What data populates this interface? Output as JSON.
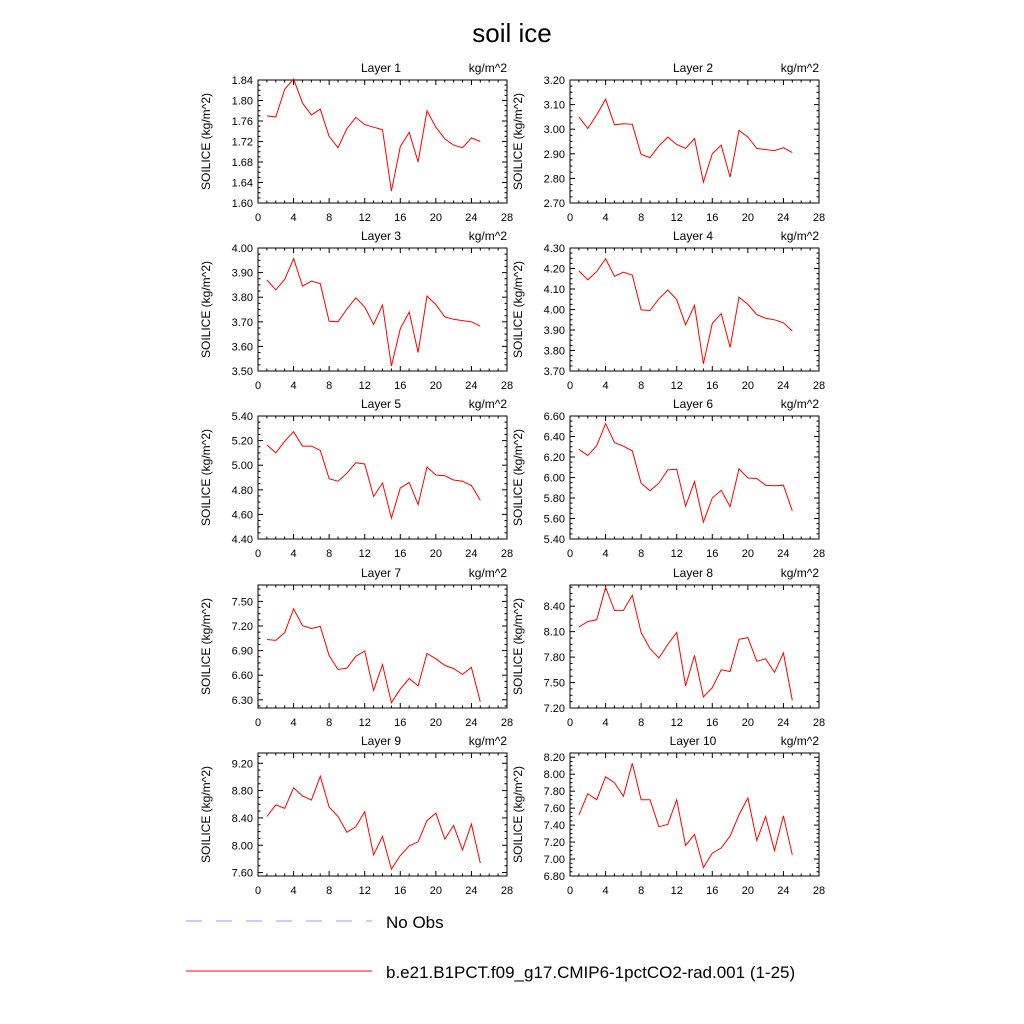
{
  "figure": {
    "title": "soil ice"
  },
  "chart_data": [
    {
      "type": "line",
      "title": "Layer 1",
      "units": "kg/m^2",
      "ylabel": "SOILICE  (kg/m^2)",
      "xlim": [
        0,
        28
      ],
      "ylim": [
        1.6,
        1.84
      ],
      "xticks": [
        "0",
        "4",
        "8",
        "12",
        "16",
        "20",
        "24",
        "28"
      ],
      "yticks": [
        "1.60",
        "1.64",
        "1.68",
        "1.72",
        "1.76",
        "1.80",
        "1.84"
      ],
      "x": [
        1,
        2,
        3,
        4,
        5,
        6,
        7,
        8,
        9,
        10,
        11,
        12,
        13,
        14,
        15,
        16,
        17,
        18,
        19,
        20,
        21,
        22,
        23,
        24,
        25
      ],
      "series": [
        {
          "color": "#ff0000",
          "values": [
            1.77,
            1.768,
            1.822,
            1.842,
            1.795,
            1.772,
            1.783,
            1.73,
            1.708,
            1.745,
            1.767,
            1.753,
            1.748,
            1.743,
            1.623,
            1.71,
            1.738,
            1.68,
            1.78,
            1.748,
            1.725,
            1.713,
            1.708,
            1.727,
            1.72
          ]
        }
      ]
    },
    {
      "type": "line",
      "title": "Layer 2",
      "units": "kg/m^2",
      "ylabel": "SOILICE  (kg/m^2)",
      "xlim": [
        0,
        28
      ],
      "ylim": [
        2.7,
        3.2
      ],
      "xticks": [
        "0",
        "4",
        "8",
        "12",
        "16",
        "20",
        "24",
        "28"
      ],
      "yticks": [
        "2.70",
        "2.80",
        "2.90",
        "3.00",
        "3.10",
        "3.20"
      ],
      "x": [
        1,
        2,
        3,
        4,
        5,
        6,
        7,
        8,
        9,
        10,
        11,
        12,
        13,
        14,
        15,
        16,
        17,
        18,
        19,
        20,
        21,
        22,
        23,
        24,
        25
      ],
      "series": [
        {
          "color": "#ff0000",
          "values": [
            3.05,
            3.003,
            3.058,
            3.122,
            3.018,
            3.022,
            3.02,
            2.897,
            2.885,
            2.932,
            2.968,
            2.938,
            2.922,
            2.962,
            2.785,
            2.9,
            2.935,
            2.805,
            2.995,
            2.968,
            2.922,
            2.917,
            2.913,
            2.925,
            2.905
          ]
        }
      ]
    },
    {
      "type": "line",
      "title": "Layer 3",
      "units": "kg/m^2",
      "ylabel": "SOILICE  (kg/m^2)",
      "xlim": [
        0,
        28
      ],
      "ylim": [
        3.5,
        4.0
      ],
      "xticks": [
        "0",
        "4",
        "8",
        "12",
        "16",
        "20",
        "24",
        "28"
      ],
      "yticks": [
        "3.50",
        "3.60",
        "3.70",
        "3.80",
        "3.90",
        "4.00"
      ],
      "x": [
        1,
        2,
        3,
        4,
        5,
        6,
        7,
        8,
        9,
        10,
        11,
        12,
        13,
        14,
        15,
        16,
        17,
        18,
        19,
        20,
        21,
        22,
        23,
        24,
        25
      ],
      "series": [
        {
          "color": "#ff0000",
          "values": [
            3.87,
            3.83,
            3.872,
            3.957,
            3.845,
            3.865,
            3.855,
            3.702,
            3.7,
            3.752,
            3.797,
            3.76,
            3.69,
            3.768,
            3.52,
            3.672,
            3.74,
            3.575,
            3.805,
            3.77,
            3.72,
            3.71,
            3.705,
            3.7,
            3.682
          ]
        }
      ]
    },
    {
      "type": "line",
      "title": "Layer 4",
      "units": "kg/m^2",
      "ylabel": "SOILICE  (kg/m^2)",
      "xlim": [
        0,
        28
      ],
      "ylim": [
        3.7,
        4.3
      ],
      "xticks": [
        "0",
        "4",
        "8",
        "12",
        "16",
        "20",
        "24",
        "28"
      ],
      "yticks": [
        "3.70",
        "3.80",
        "3.90",
        "4.00",
        "4.10",
        "4.20",
        "4.30"
      ],
      "x": [
        1,
        2,
        3,
        4,
        5,
        6,
        7,
        8,
        9,
        10,
        11,
        12,
        13,
        14,
        15,
        16,
        17,
        18,
        19,
        20,
        21,
        22,
        23,
        24,
        25
      ],
      "series": [
        {
          "color": "#ff0000",
          "values": [
            4.188,
            4.145,
            4.185,
            4.248,
            4.162,
            4.182,
            4.168,
            3.998,
            3.995,
            4.052,
            4.095,
            4.048,
            3.925,
            4.02,
            3.735,
            3.932,
            3.98,
            3.815,
            4.06,
            4.025,
            3.975,
            3.957,
            3.95,
            3.935,
            3.895
          ]
        }
      ]
    },
    {
      "type": "line",
      "title": "Layer 5",
      "units": "kg/m^2",
      "ylabel": "SOILICE  (kg/m^2)",
      "xlim": [
        0,
        28
      ],
      "ylim": [
        4.4,
        5.4
      ],
      "xticks": [
        "0",
        "4",
        "8",
        "12",
        "16",
        "20",
        "24",
        "28"
      ],
      "yticks": [
        "4.40",
        "4.60",
        "4.80",
        "5.00",
        "5.20",
        "5.40"
      ],
      "x": [
        1,
        2,
        3,
        4,
        5,
        6,
        7,
        8,
        9,
        10,
        11,
        12,
        13,
        14,
        15,
        16,
        17,
        18,
        19,
        20,
        21,
        22,
        23,
        24,
        25
      ],
      "series": [
        {
          "color": "#ff0000",
          "values": [
            5.165,
            5.1,
            5.195,
            5.272,
            5.155,
            5.155,
            5.12,
            4.89,
            4.87,
            4.935,
            5.02,
            5.01,
            4.745,
            4.855,
            4.57,
            4.815,
            4.86,
            4.68,
            4.985,
            4.92,
            4.915,
            4.88,
            4.87,
            4.835,
            4.715
          ]
        }
      ]
    },
    {
      "type": "line",
      "title": "Layer 6",
      "units": "kg/m^2",
      "ylabel": "SOILICE  (kg/m^2)",
      "xlim": [
        0,
        28
      ],
      "ylim": [
        5.4,
        6.6
      ],
      "xticks": [
        "0",
        "4",
        "8",
        "12",
        "16",
        "20",
        "24",
        "28"
      ],
      "yticks": [
        "5.40",
        "5.60",
        "5.80",
        "6.00",
        "6.20",
        "6.40",
        "6.60"
      ],
      "x": [
        1,
        2,
        3,
        4,
        5,
        6,
        7,
        8,
        9,
        10,
        11,
        12,
        13,
        14,
        15,
        16,
        17,
        18,
        19,
        20,
        21,
        22,
        23,
        24,
        25
      ],
      "series": [
        {
          "color": "#ff0000",
          "values": [
            6.275,
            6.215,
            6.31,
            6.525,
            6.34,
            6.305,
            6.26,
            5.945,
            5.87,
            5.945,
            6.075,
            6.08,
            5.72,
            5.96,
            5.565,
            5.8,
            5.875,
            5.715,
            6.085,
            5.995,
            5.99,
            5.925,
            5.92,
            5.925,
            5.675
          ]
        }
      ]
    },
    {
      "type": "line",
      "title": "Layer 7",
      "units": "kg/m^2",
      "ylabel": "SOILICE  (kg/m^2)",
      "xlim": [
        0,
        28
      ],
      "ylim": [
        6.2,
        7.7
      ],
      "xticks": [
        "0",
        "4",
        "8",
        "12",
        "16",
        "20",
        "24",
        "28"
      ],
      "yticks": [
        "6.30",
        "6.60",
        "6.90",
        "7.20",
        "7.50"
      ],
      "x": [
        1,
        2,
        3,
        4,
        5,
        6,
        7,
        8,
        9,
        10,
        11,
        12,
        13,
        14,
        15,
        16,
        17,
        18,
        19,
        20,
        21,
        22,
        23,
        24,
        25
      ],
      "series": [
        {
          "color": "#ff0000",
          "values": [
            7.035,
            7.025,
            7.12,
            7.41,
            7.205,
            7.17,
            7.195,
            6.84,
            6.67,
            6.685,
            6.83,
            6.895,
            6.415,
            6.73,
            6.265,
            6.43,
            6.56,
            6.47,
            6.865,
            6.8,
            6.72,
            6.68,
            6.61,
            6.695,
            6.275
          ]
        }
      ]
    },
    {
      "type": "line",
      "title": "Layer 8",
      "units": "kg/m^2",
      "ylabel": "SOILICE  (kg/m^2)",
      "xlim": [
        0,
        28
      ],
      "ylim": [
        7.2,
        8.65
      ],
      "xticks": [
        "0",
        "4",
        "8",
        "12",
        "16",
        "20",
        "24",
        "28"
      ],
      "yticks": [
        "7.20",
        "7.50",
        "7.80",
        "8.10",
        "8.40"
      ],
      "x": [
        1,
        2,
        3,
        4,
        5,
        6,
        7,
        8,
        9,
        10,
        11,
        12,
        13,
        14,
        15,
        16,
        17,
        18,
        19,
        20,
        21,
        22,
        23,
        24,
        25
      ],
      "series": [
        {
          "color": "#ff0000",
          "values": [
            8.155,
            8.22,
            8.24,
            8.62,
            8.35,
            8.35,
            8.53,
            8.09,
            7.9,
            7.79,
            7.95,
            8.09,
            7.46,
            7.82,
            7.33,
            7.44,
            7.65,
            7.63,
            8.01,
            8.03,
            7.75,
            7.78,
            7.62,
            7.85,
            7.29
          ]
        }
      ]
    },
    {
      "type": "line",
      "title": "Layer 9",
      "units": "kg/m^2",
      "ylabel": "SOILICE  (kg/m^2)",
      "xlim": [
        0,
        28
      ],
      "ylim": [
        7.55,
        9.35
      ],
      "xticks": [
        "0",
        "4",
        "8",
        "12",
        "16",
        "20",
        "24",
        "28"
      ],
      "yticks": [
        "7.60",
        "8.00",
        "8.40",
        "8.80",
        "9.20"
      ],
      "x": [
        1,
        2,
        3,
        4,
        5,
        6,
        7,
        8,
        9,
        10,
        11,
        12,
        13,
        14,
        15,
        16,
        17,
        18,
        19,
        20,
        21,
        22,
        23,
        24,
        25
      ],
      "series": [
        {
          "color": "#ff0000",
          "values": [
            8.42,
            8.59,
            8.54,
            8.84,
            8.72,
            8.66,
            9.01,
            8.56,
            8.42,
            8.19,
            8.27,
            8.49,
            7.86,
            8.13,
            7.65,
            7.85,
            7.99,
            8.05,
            8.36,
            8.47,
            8.09,
            8.29,
            7.93,
            8.31,
            7.74
          ]
        }
      ]
    },
    {
      "type": "line",
      "title": "Layer 10",
      "units": "kg/m^2",
      "ylabel": "SOILICE  (kg/m^2)",
      "xlim": [
        0,
        28
      ],
      "ylim": [
        6.8,
        8.25
      ],
      "xticks": [
        "0",
        "4",
        "8",
        "12",
        "16",
        "20",
        "24",
        "28"
      ],
      "yticks": [
        "6.80",
        "7.00",
        "7.20",
        "7.40",
        "7.60",
        "7.80",
        "8.00",
        "8.20"
      ],
      "x": [
        1,
        2,
        3,
        4,
        5,
        6,
        7,
        8,
        9,
        10,
        11,
        12,
        13,
        14,
        15,
        16,
        17,
        18,
        19,
        20,
        21,
        22,
        23,
        24,
        25
      ],
      "series": [
        {
          "color": "#ff0000",
          "values": [
            7.52,
            7.77,
            7.7,
            7.97,
            7.9,
            7.74,
            8.13,
            7.7,
            7.7,
            7.38,
            7.41,
            7.7,
            7.16,
            7.29,
            6.9,
            7.07,
            7.13,
            7.27,
            7.52,
            7.72,
            7.22,
            7.5,
            7.1,
            7.51,
            7.05
          ]
        }
      ]
    }
  ],
  "legend": [
    {
      "label": "No Obs",
      "color": "#9999ff",
      "style": "dashed"
    },
    {
      "label": "b.e21.B1PCT.f09_g17.CMIP6-1pctCO2-rad.001 (1-25)",
      "color": "#ff0000",
      "style": "solid"
    }
  ]
}
